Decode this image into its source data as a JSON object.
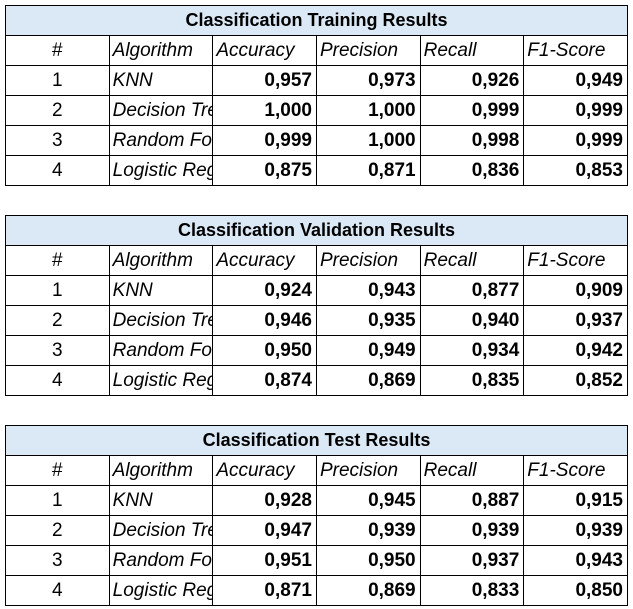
{
  "chart_data": [
    {
      "type": "table",
      "title": "Classification Training Results",
      "columns": [
        "#",
        "Algorithm",
        "Accuracy",
        "Precision",
        "Recall",
        "F1-Score"
      ],
      "rows": [
        [
          "1",
          "KNN",
          "0,957",
          "0,973",
          "0,926",
          "0,949"
        ],
        [
          "2",
          "Decision Tree",
          "1,000",
          "1,000",
          "0,999",
          "0,999"
        ],
        [
          "3",
          "Random Forest",
          "0,999",
          "1,000",
          "0,998",
          "0,999"
        ],
        [
          "4",
          "Logistic Regression",
          "0,875",
          "0,871",
          "0,836",
          "0,853"
        ]
      ]
    },
    {
      "type": "table",
      "title": "Classification Validation Results",
      "columns": [
        "#",
        "Algorithm",
        "Accuracy",
        "Precision",
        "Recall",
        "F1-Score"
      ],
      "rows": [
        [
          "1",
          "KNN",
          "0,924",
          "0,943",
          "0,877",
          "0,909"
        ],
        [
          "2",
          "Decision Tree",
          "0,946",
          "0,935",
          "0,940",
          "0,937"
        ],
        [
          "3",
          "Random Forest",
          "0,950",
          "0,949",
          "0,934",
          "0,942"
        ],
        [
          "4",
          "Logistic Regression",
          "0,874",
          "0,869",
          "0,835",
          "0,852"
        ]
      ]
    },
    {
      "type": "table",
      "title": "Classification Test Results",
      "columns": [
        "#",
        "Algorithm",
        "Accuracy",
        "Precision",
        "Recall",
        "F1-Score"
      ],
      "rows": [
        [
          "1",
          "KNN",
          "0,928",
          "0,945",
          "0,887",
          "0,915"
        ],
        [
          "2",
          "Decision Tree",
          "0,947",
          "0,939",
          "0,939",
          "0,939"
        ],
        [
          "3",
          "Random Forest",
          "0,951",
          "0,950",
          "0,937",
          "0,943"
        ],
        [
          "4",
          "Logistic Regression",
          "0,871",
          "0,869",
          "0,833",
          "0,850"
        ]
      ]
    }
  ]
}
